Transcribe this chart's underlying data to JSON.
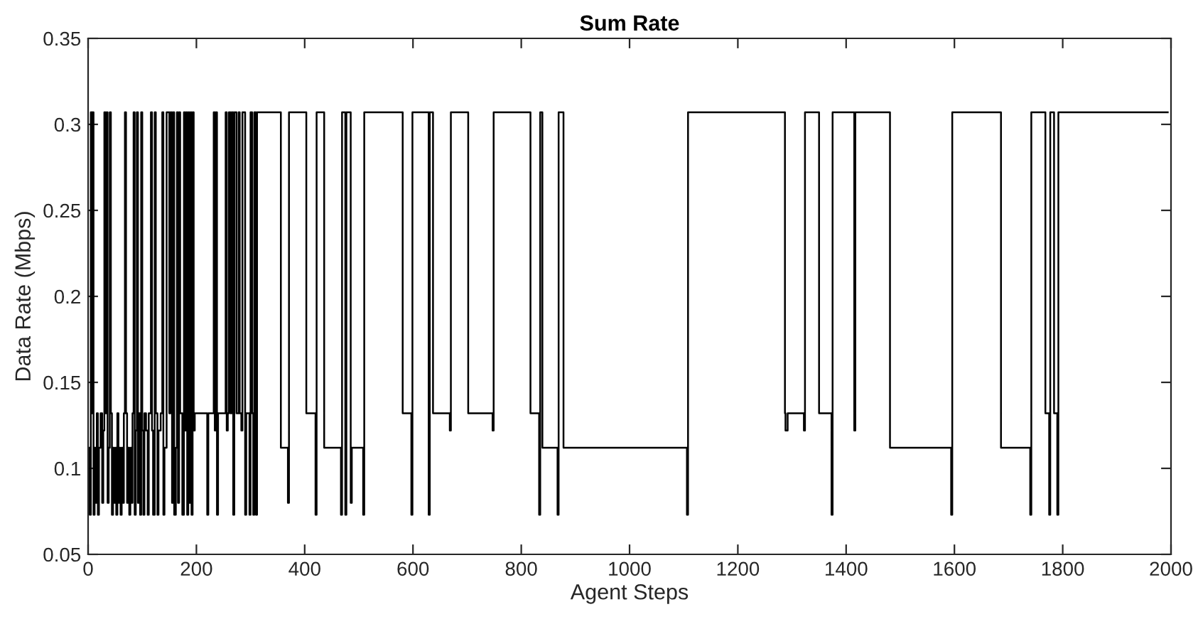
{
  "chart_data": {
    "type": "step",
    "title": "Sum Rate",
    "xlabel": "Agent Steps",
    "ylabel": "Data Rate (Mbps)",
    "xlim": [
      0,
      2000
    ],
    "xticks": [
      0,
      200,
      400,
      600,
      800,
      1000,
      1200,
      1400,
      1600,
      1800,
      2000
    ],
    "ylim": [
      0.05,
      0.35
    ],
    "yticks": [
      0.05,
      0.1,
      0.15,
      0.2,
      0.25,
      0.3,
      0.35
    ],
    "grid": false,
    "marker": "none",
    "line_style": "solid",
    "series": [
      {
        "color": "#000000",
        "x": [
          0,
          3,
          5,
          7,
          8,
          10,
          12,
          14,
          16,
          18,
          20,
          23,
          26,
          28,
          30,
          32,
          34,
          36,
          38,
          40,
          42,
          44,
          46,
          48,
          50,
          52,
          54,
          56,
          58,
          60,
          62,
          64,
          66,
          68,
          70,
          72,
          74,
          76,
          78,
          80,
          82,
          84,
          86,
          88,
          90,
          92,
          94,
          96,
          98,
          100,
          102,
          104,
          107,
          110,
          112,
          116,
          118,
          120,
          123,
          125,
          128,
          130,
          134,
          137,
          139,
          141,
          145,
          150,
          152,
          155,
          157,
          159,
          162,
          164,
          166,
          168,
          170,
          174,
          177,
          179,
          181,
          183,
          185,
          187,
          189,
          191,
          193,
          195,
          197,
          220,
          222,
          232,
          234,
          236,
          238,
          240,
          254,
          256,
          258,
          260,
          263,
          265,
          268,
          270,
          274,
          278,
          280,
          283,
          285,
          290,
          292,
          298,
          300,
          303,
          305,
          307,
          310,
          312,
          356,
          369,
          371,
          403,
          420,
          422,
          436,
          467,
          469,
          475,
          477,
          485,
          487,
          508,
          510,
          581,
          597,
          599,
          629,
          631,
          637,
          668,
          670,
          702,
          747,
          749,
          817,
          833,
          835,
          839,
          867,
          869,
          878,
          1106,
          1108,
          1287,
          1288,
          1292,
          1322,
          1324,
          1350,
          1373,
          1375,
          1415,
          1417,
          1481,
          1594,
          1596,
          1686,
          1740,
          1742,
          1768,
          1775,
          1777,
          1784,
          1790,
          1792,
          1994
        ],
        "values": [
          0.112,
          0.073,
          0.307,
          0.132,
          0.307,
          0.073,
          0.112,
          0.08,
          0.132,
          0.073,
          0.112,
          0.132,
          0.08,
          0.122,
          0.307,
          0.132,
          0.307,
          0.08,
          0.112,
          0.307,
          0.132,
          0.073,
          0.112,
          0.08,
          0.112,
          0.073,
          0.132,
          0.08,
          0.112,
          0.073,
          0.112,
          0.08,
          0.132,
          0.307,
          0.132,
          0.08,
          0.112,
          0.073,
          0.112,
          0.08,
          0.132,
          0.307,
          0.073,
          0.122,
          0.307,
          0.08,
          0.132,
          0.073,
          0.307,
          0.122,
          0.073,
          0.132,
          0.122,
          0.073,
          0.132,
          0.307,
          0.122,
          0.073,
          0.307,
          0.132,
          0.073,
          0.122,
          0.132,
          0.307,
          0.073,
          0.112,
          0.307,
          0.132,
          0.307,
          0.08,
          0.307,
          0.073,
          0.112,
          0.307,
          0.08,
          0.307,
          0.132,
          0.073,
          0.307,
          0.122,
          0.307,
          0.073,
          0.307,
          0.08,
          0.307,
          0.073,
          0.307,
          0.122,
          0.132,
          0.073,
          0.132,
          0.307,
          0.122,
          0.307,
          0.073,
          0.132,
          0.307,
          0.122,
          0.132,
          0.307,
          0.132,
          0.307,
          0.073,
          0.307,
          0.132,
          0.307,
          0.132,
          0.122,
          0.307,
          0.073,
          0.132,
          0.073,
          0.307,
          0.132,
          0.073,
          0.307,
          0.073,
          0.307,
          0.112,
          0.08,
          0.307,
          0.132,
          0.073,
          0.307,
          0.112,
          0.073,
          0.307,
          0.073,
          0.307,
          0.08,
          0.112,
          0.073,
          0.307,
          0.132,
          0.073,
          0.307,
          0.073,
          0.307,
          0.132,
          0.122,
          0.307,
          0.132,
          0.122,
          0.307,
          0.132,
          0.073,
          0.307,
          0.112,
          0.073,
          0.307,
          0.112,
          0.073,
          0.307,
          0.132,
          0.122,
          0.132,
          0.122,
          0.307,
          0.132,
          0.073,
          0.307,
          0.122,
          0.307,
          0.112,
          0.073,
          0.307,
          0.112,
          0.073,
          0.307,
          0.132,
          0.073,
          0.307,
          0.132,
          0.073,
          0.307,
          0.307
        ]
      }
    ]
  }
}
